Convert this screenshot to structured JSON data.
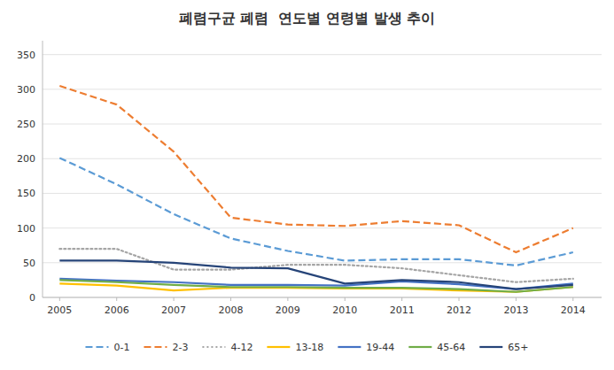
{
  "chart_data": {
    "type": "line",
    "title": "폐렴구균 폐렴  연도별 연령별 발생 추이",
    "x": [
      2005,
      2006,
      2007,
      2008,
      2009,
      2010,
      2011,
      2012,
      2013,
      2014
    ],
    "xlim": [
      2004.7,
      2014.5
    ],
    "xticks": [
      2005,
      2006,
      2007,
      2008,
      2009,
      2010,
      2011,
      2012,
      2013,
      2014
    ],
    "ylim": [
      0,
      370
    ],
    "yticks": [
      0,
      50,
      100,
      150,
      200,
      250,
      300,
      350
    ],
    "grid": true,
    "legend": "bottom",
    "series": [
      {
        "name": "0-1",
        "color": "#5B9BD5",
        "line_style": "dashed",
        "values": [
          201,
          163,
          120,
          85,
          67,
          53,
          55,
          55,
          46,
          65
        ]
      },
      {
        "name": "2-3",
        "color": "#ED7D31",
        "line_style": "dashed",
        "values": [
          305,
          278,
          210,
          115,
          105,
          103,
          110,
          104,
          65,
          100
        ]
      },
      {
        "name": "4-12",
        "color": "#A5A5A5",
        "line_style": "dotted",
        "values": [
          70,
          70,
          40,
          40,
          47,
          47,
          42,
          32,
          22,
          27
        ]
      },
      {
        "name": "13-18",
        "color": "#FFC000",
        "line_style": "solid",
        "values": [
          20,
          17,
          10,
          14,
          14,
          13,
          13,
          10,
          8,
          15
        ]
      },
      {
        "name": "19-44",
        "color": "#4472C4",
        "line_style": "solid",
        "values": [
          27,
          24,
          22,
          18,
          18,
          17,
          23,
          19,
          12,
          20
        ]
      },
      {
        "name": "45-64",
        "color": "#70AD47",
        "line_style": "solid",
        "values": [
          25,
          22,
          18,
          15,
          15,
          14,
          14,
          12,
          8,
          15
        ]
      },
      {
        "name": "65+",
        "color": "#264478",
        "line_style": "solid",
        "values": [
          53,
          53,
          50,
          43,
          42,
          20,
          25,
          22,
          12,
          18
        ]
      }
    ]
  }
}
